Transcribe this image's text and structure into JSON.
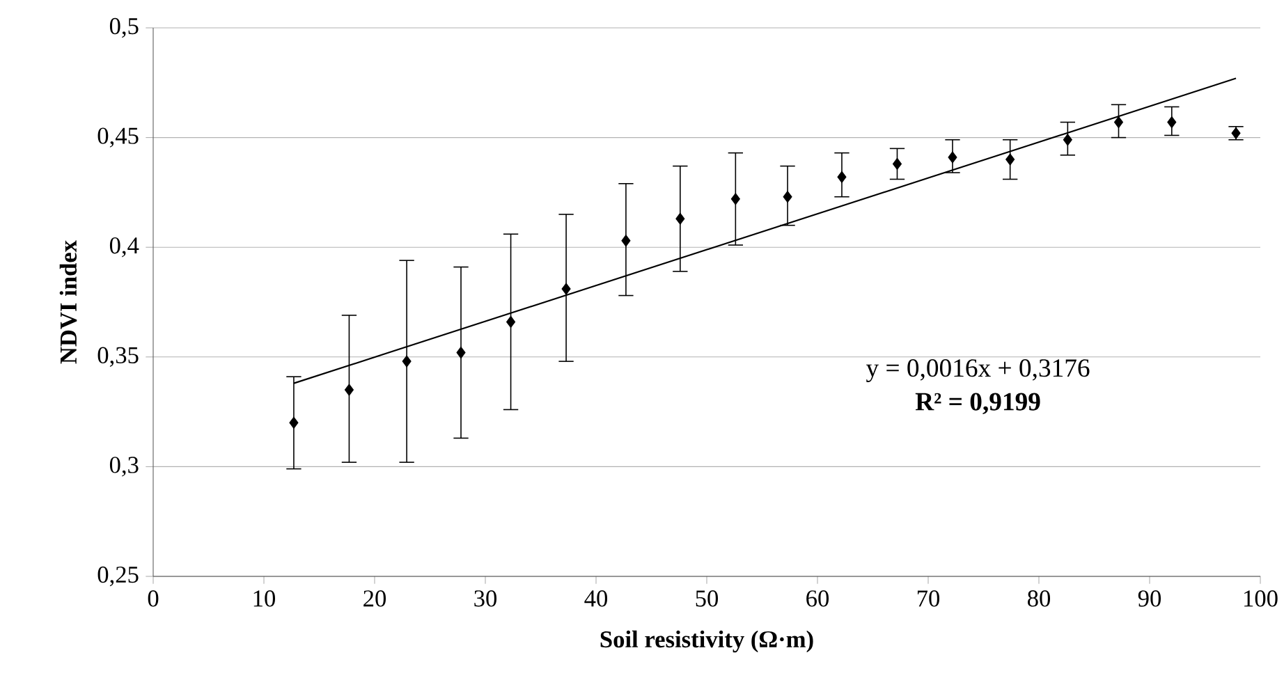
{
  "chart_data": {
    "type": "scatter",
    "xlabel": "Soil resistivity (Ω·m)",
    "ylabel": "NDVI index",
    "xlim": [
      0,
      100
    ],
    "xticks": [
      0,
      10,
      20,
      30,
      40,
      50,
      60,
      70,
      80,
      90,
      100
    ],
    "ylim": [
      0.25,
      0.5
    ],
    "yticks": [
      {
        "value": 0.25,
        "label": "0,25"
      },
      {
        "value": 0.3,
        "label": "0,3"
      },
      {
        "value": 0.35,
        "label": "0,35"
      },
      {
        "value": 0.4,
        "label": "0,4"
      },
      {
        "value": 0.45,
        "label": "0,45"
      },
      {
        "value": 0.5,
        "label": "0,5"
      }
    ],
    "grid": "y",
    "series": [
      {
        "marker": "diamond",
        "color": "#000000",
        "x": [
          12.7,
          17.7,
          22.9,
          27.8,
          32.3,
          37.3,
          42.7,
          47.6,
          52.6,
          57.3,
          62.2,
          67.2,
          72.2,
          77.4,
          82.6,
          87.2,
          92.0,
          97.8
        ],
        "values": [
          0.32,
          0.335,
          0.348,
          0.352,
          0.366,
          0.381,
          0.403,
          0.413,
          0.422,
          0.423,
          0.432,
          0.438,
          0.441,
          0.44,
          0.449,
          0.457,
          0.457,
          0.452
        ],
        "errors": [
          [
            0.299,
            0.341
          ],
          [
            0.302,
            0.369
          ],
          [
            0.302,
            0.394
          ],
          [
            0.313,
            0.391
          ],
          [
            0.326,
            0.406
          ],
          [
            0.348,
            0.415
          ],
          [
            0.378,
            0.429
          ],
          [
            0.389,
            0.437
          ],
          [
            0.401,
            0.443
          ],
          [
            0.41,
            0.437
          ],
          [
            0.423,
            0.443
          ],
          [
            0.431,
            0.445
          ],
          [
            0.434,
            0.449
          ],
          [
            0.431,
            0.449
          ],
          [
            0.442,
            0.457
          ],
          [
            0.45,
            0.465
          ],
          [
            0.451,
            0.464
          ],
          [
            0.449,
            0.455
          ]
        ]
      },
      {
        "type": "line",
        "color": "#000000",
        "x": [
          12.7,
          97.8
        ],
        "values": [
          0.338,
          0.477
        ]
      }
    ],
    "annotations": [
      "y = 0,0016x + 0,3176",
      "R² = 0,9199"
    ]
  }
}
